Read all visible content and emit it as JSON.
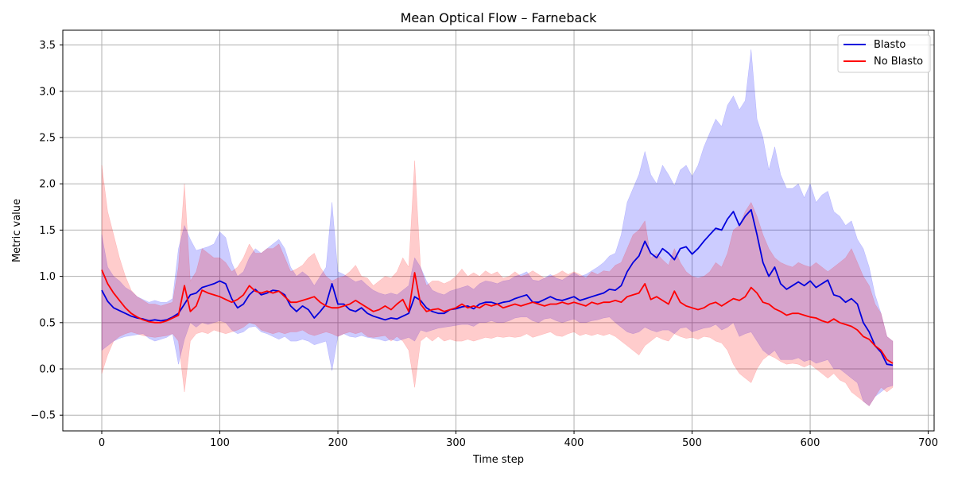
{
  "chart_data": {
    "type": "line",
    "title": "Mean Optical Flow – Farneback",
    "xlabel": "Time step",
    "ylabel": "Metric value",
    "xlim": [
      -33,
      705
    ],
    "ylim": [
      -0.67,
      3.66
    ],
    "xticks": [
      0,
      100,
      200,
      300,
      400,
      500,
      600,
      700
    ],
    "yticks": [
      -0.5,
      0.0,
      0.5,
      1.0,
      1.5,
      2.0,
      2.5,
      3.0,
      3.5
    ],
    "grid": true,
    "legend_position": "top-right",
    "series": [
      {
        "name": "Blasto",
        "color": "#0000dd",
        "band_color": "#0000ff",
        "x": [
          0,
          5,
          10,
          15,
          20,
          25,
          30,
          35,
          40,
          45,
          50,
          55,
          60,
          65,
          70,
          75,
          80,
          85,
          90,
          95,
          100,
          105,
          110,
          115,
          120,
          125,
          130,
          135,
          140,
          145,
          150,
          155,
          160,
          165,
          170,
          175,
          180,
          185,
          190,
          195,
          200,
          205,
          210,
          215,
          220,
          225,
          230,
          235,
          240,
          245,
          250,
          255,
          260,
          265,
          270,
          275,
          280,
          285,
          290,
          295,
          300,
          305,
          310,
          315,
          320,
          325,
          330,
          335,
          340,
          345,
          350,
          355,
          360,
          365,
          370,
          375,
          380,
          385,
          390,
          395,
          400,
          405,
          410,
          415,
          420,
          425,
          430,
          435,
          440,
          445,
          450,
          455,
          460,
          465,
          470,
          475,
          480,
          485,
          490,
          495,
          500,
          505,
          510,
          515,
          520,
          525,
          530,
          535,
          540,
          545,
          550,
          555,
          560,
          565,
          570,
          575,
          580,
          585,
          590,
          595,
          600,
          605,
          610,
          615,
          620,
          625,
          630,
          635,
          640,
          645,
          650,
          655,
          660,
          665,
          670
        ],
        "mean": [
          0.85,
          0.73,
          0.66,
          0.63,
          0.6,
          0.57,
          0.55,
          0.54,
          0.52,
          0.53,
          0.52,
          0.53,
          0.56,
          0.6,
          0.7,
          0.8,
          0.82,
          0.88,
          0.9,
          0.92,
          0.95,
          0.92,
          0.76,
          0.66,
          0.7,
          0.8,
          0.86,
          0.8,
          0.82,
          0.85,
          0.84,
          0.8,
          0.68,
          0.62,
          0.68,
          0.64,
          0.55,
          0.62,
          0.7,
          0.92,
          0.7,
          0.7,
          0.64,
          0.62,
          0.66,
          0.6,
          0.57,
          0.55,
          0.53,
          0.55,
          0.54,
          0.57,
          0.6,
          0.78,
          0.74,
          0.66,
          0.62,
          0.6,
          0.6,
          0.64,
          0.65,
          0.67,
          0.68,
          0.65,
          0.7,
          0.72,
          0.72,
          0.7,
          0.72,
          0.73,
          0.76,
          0.78,
          0.8,
          0.72,
          0.72,
          0.75,
          0.78,
          0.75,
          0.74,
          0.76,
          0.78,
          0.74,
          0.76,
          0.78,
          0.8,
          0.82,
          0.86,
          0.85,
          0.9,
          1.05,
          1.15,
          1.22,
          1.38,
          1.25,
          1.2,
          1.3,
          1.25,
          1.18,
          1.3,
          1.32,
          1.24,
          1.3,
          1.38,
          1.45,
          1.52,
          1.5,
          1.62,
          1.7,
          1.55,
          1.65,
          1.72,
          1.45,
          1.15,
          1.0,
          1.1,
          0.92,
          0.86,
          0.9,
          0.94,
          0.9,
          0.95,
          0.88,
          0.92,
          0.96,
          0.8,
          0.78,
          0.72,
          0.76,
          0.7,
          0.5,
          0.4,
          0.25,
          0.18,
          0.05,
          0.04
        ],
        "lower": [
          0.2,
          0.25,
          0.3,
          0.33,
          0.35,
          0.36,
          0.37,
          0.38,
          0.33,
          0.3,
          0.32,
          0.34,
          0.38,
          0.05,
          0.32,
          0.5,
          0.45,
          0.5,
          0.48,
          0.5,
          0.52,
          0.5,
          0.42,
          0.38,
          0.4,
          0.45,
          0.46,
          0.4,
          0.38,
          0.35,
          0.32,
          0.35,
          0.3,
          0.3,
          0.32,
          0.3,
          0.26,
          0.28,
          0.3,
          -0.02,
          0.35,
          0.38,
          0.35,
          0.34,
          0.36,
          0.34,
          0.33,
          0.32,
          0.3,
          0.32,
          0.3,
          0.32,
          0.34,
          0.3,
          0.42,
          0.4,
          0.42,
          0.44,
          0.45,
          0.46,
          0.47,
          0.48,
          0.48,
          0.46,
          0.5,
          0.5,
          0.52,
          0.5,
          0.5,
          0.52,
          0.55,
          0.56,
          0.56,
          0.52,
          0.5,
          0.54,
          0.55,
          0.52,
          0.5,
          0.52,
          0.54,
          0.5,
          0.5,
          0.52,
          0.53,
          0.55,
          0.56,
          0.5,
          0.45,
          0.4,
          0.38,
          0.4,
          0.45,
          0.42,
          0.4,
          0.42,
          0.42,
          0.38,
          0.44,
          0.45,
          0.4,
          0.42,
          0.44,
          0.45,
          0.48,
          0.42,
          0.45,
          0.5,
          0.35,
          0.38,
          0.4,
          0.3,
          0.2,
          0.15,
          0.2,
          0.1,
          0.1,
          0.1,
          0.12,
          0.08,
          0.1,
          0.06,
          0.08,
          0.1,
          0.0,
          0.0,
          -0.05,
          -0.1,
          -0.15,
          -0.35,
          -0.4,
          -0.3,
          -0.25,
          -0.2,
          -0.18
        ],
        "upper": [
          1.45,
          1.1,
          1.0,
          0.95,
          0.88,
          0.84,
          0.78,
          0.75,
          0.72,
          0.74,
          0.72,
          0.72,
          0.76,
          1.3,
          1.55,
          1.4,
          1.28,
          1.3,
          1.32,
          1.35,
          1.48,
          1.42,
          1.15,
          1.0,
          1.05,
          1.2,
          1.3,
          1.25,
          1.3,
          1.35,
          1.4,
          1.3,
          1.1,
          1.0,
          1.05,
          1.0,
          0.9,
          1.0,
          1.1,
          1.8,
          1.05,
          1.02,
          0.98,
          0.94,
          0.96,
          0.9,
          0.85,
          0.82,
          0.8,
          0.82,
          0.8,
          0.85,
          0.9,
          1.2,
          1.1,
          0.95,
          0.85,
          0.82,
          0.8,
          0.84,
          0.86,
          0.88,
          0.9,
          0.86,
          0.92,
          0.95,
          0.94,
          0.92,
          0.95,
          0.96,
          1.0,
          1.02,
          1.05,
          0.96,
          0.95,
          0.98,
          1.02,
          0.98,
          0.96,
          1.0,
          1.04,
          1.0,
          1.02,
          1.06,
          1.1,
          1.15,
          1.22,
          1.25,
          1.45,
          1.8,
          1.95,
          2.1,
          2.35,
          2.1,
          2.0,
          2.2,
          2.1,
          1.98,
          2.15,
          2.2,
          2.08,
          2.2,
          2.4,
          2.55,
          2.7,
          2.62,
          2.85,
          2.95,
          2.8,
          2.9,
          3.45,
          2.7,
          2.5,
          2.15,
          2.4,
          2.1,
          1.95,
          1.95,
          2.0,
          1.85,
          2.0,
          1.8,
          1.88,
          1.92,
          1.7,
          1.65,
          1.55,
          1.6,
          1.4,
          1.3,
          1.1,
          0.8,
          0.6,
          0.35,
          0.3
        ]
      },
      {
        "name": "No Blasto",
        "color": "#ff0000",
        "band_color": "#ff0000",
        "x": [
          0,
          5,
          10,
          15,
          20,
          25,
          30,
          35,
          40,
          45,
          50,
          55,
          60,
          65,
          70,
          75,
          80,
          85,
          90,
          95,
          100,
          105,
          110,
          115,
          120,
          125,
          130,
          135,
          140,
          145,
          150,
          155,
          160,
          165,
          170,
          175,
          180,
          185,
          190,
          195,
          200,
          205,
          210,
          215,
          220,
          225,
          230,
          235,
          240,
          245,
          250,
          255,
          260,
          265,
          270,
          275,
          280,
          285,
          290,
          295,
          300,
          305,
          310,
          315,
          320,
          325,
          330,
          335,
          340,
          345,
          350,
          355,
          360,
          365,
          370,
          375,
          380,
          385,
          390,
          395,
          400,
          405,
          410,
          415,
          420,
          425,
          430,
          435,
          440,
          445,
          450,
          455,
          460,
          465,
          470,
          475,
          480,
          485,
          490,
          495,
          500,
          505,
          510,
          515,
          520,
          525,
          530,
          535,
          540,
          545,
          550,
          555,
          560,
          565,
          570,
          575,
          580,
          585,
          590,
          595,
          600,
          605,
          610,
          615,
          620,
          625,
          630,
          635,
          640,
          645,
          650,
          655,
          660,
          665,
          670
        ],
        "mean": [
          1.07,
          0.92,
          0.82,
          0.74,
          0.66,
          0.6,
          0.56,
          0.53,
          0.51,
          0.5,
          0.5,
          0.52,
          0.55,
          0.58,
          0.9,
          0.62,
          0.68,
          0.85,
          0.82,
          0.8,
          0.78,
          0.75,
          0.72,
          0.75,
          0.8,
          0.9,
          0.84,
          0.82,
          0.84,
          0.82,
          0.84,
          0.78,
          0.72,
          0.72,
          0.74,
          0.76,
          0.78,
          0.72,
          0.68,
          0.66,
          0.66,
          0.68,
          0.7,
          0.74,
          0.7,
          0.66,
          0.62,
          0.64,
          0.68,
          0.64,
          0.7,
          0.75,
          0.62,
          1.04,
          0.7,
          0.62,
          0.64,
          0.65,
          0.62,
          0.64,
          0.66,
          0.7,
          0.66,
          0.68,
          0.66,
          0.7,
          0.68,
          0.7,
          0.66,
          0.68,
          0.7,
          0.68,
          0.7,
          0.72,
          0.7,
          0.68,
          0.7,
          0.7,
          0.72,
          0.7,
          0.72,
          0.7,
          0.68,
          0.72,
          0.7,
          0.72,
          0.72,
          0.74,
          0.72,
          0.78,
          0.8,
          0.82,
          0.92,
          0.75,
          0.78,
          0.74,
          0.7,
          0.84,
          0.72,
          0.68,
          0.66,
          0.64,
          0.66,
          0.7,
          0.72,
          0.68,
          0.72,
          0.76,
          0.74,
          0.78,
          0.88,
          0.82,
          0.72,
          0.7,
          0.65,
          0.62,
          0.58,
          0.6,
          0.6,
          0.58,
          0.56,
          0.55,
          0.52,
          0.5,
          0.54,
          0.5,
          0.48,
          0.46,
          0.42,
          0.35,
          0.32,
          0.25,
          0.2,
          0.1,
          0.06
        ],
        "lower": [
          -0.05,
          0.15,
          0.3,
          0.35,
          0.38,
          0.4,
          0.38,
          0.36,
          0.35,
          0.34,
          0.35,
          0.36,
          0.38,
          0.3,
          -0.25,
          0.3,
          0.38,
          0.4,
          0.38,
          0.42,
          0.4,
          0.38,
          0.4,
          0.42,
          0.45,
          0.5,
          0.48,
          0.42,
          0.4,
          0.38,
          0.4,
          0.38,
          0.4,
          0.4,
          0.42,
          0.38,
          0.36,
          0.38,
          0.4,
          0.38,
          0.35,
          0.38,
          0.4,
          0.38,
          0.4,
          0.35,
          0.34,
          0.35,
          0.36,
          0.3,
          0.35,
          0.3,
          0.2,
          -0.2,
          0.3,
          0.35,
          0.3,
          0.35,
          0.3,
          0.32,
          0.3,
          0.3,
          0.32,
          0.3,
          0.32,
          0.34,
          0.33,
          0.35,
          0.34,
          0.35,
          0.34,
          0.35,
          0.38,
          0.34,
          0.36,
          0.38,
          0.4,
          0.36,
          0.35,
          0.38,
          0.4,
          0.36,
          0.38,
          0.36,
          0.38,
          0.36,
          0.38,
          0.35,
          0.3,
          0.25,
          0.2,
          0.15,
          0.25,
          0.3,
          0.35,
          0.32,
          0.3,
          0.38,
          0.35,
          0.33,
          0.34,
          0.32,
          0.35,
          0.34,
          0.3,
          0.28,
          0.2,
          0.05,
          -0.05,
          -0.1,
          -0.15,
          0.0,
          0.1,
          0.15,
          0.12,
          0.08,
          0.05,
          0.06,
          0.05,
          0.02,
          0.05,
          0.0,
          -0.05,
          -0.1,
          -0.05,
          -0.12,
          -0.15,
          -0.25,
          -0.3,
          -0.35,
          -0.4,
          -0.3,
          -0.2,
          -0.25,
          -0.2
        ],
        "upper": [
          2.2,
          1.7,
          1.45,
          1.2,
          1.0,
          0.85,
          0.78,
          0.74,
          0.7,
          0.7,
          0.68,
          0.7,
          0.72,
          1.1,
          2.0,
          0.95,
          1.05,
          1.3,
          1.25,
          1.2,
          1.2,
          1.15,
          1.05,
          1.1,
          1.2,
          1.35,
          1.25,
          1.25,
          1.3,
          1.3,
          1.35,
          1.2,
          1.05,
          1.08,
          1.12,
          1.2,
          1.25,
          1.1,
          1.0,
          0.95,
          0.98,
          1.0,
          1.05,
          1.12,
          1.0,
          0.98,
          0.9,
          0.95,
          1.0,
          0.98,
          1.05,
          1.2,
          1.1,
          2.25,
          1.1,
          0.9,
          0.95,
          0.95,
          0.92,
          0.95,
          1.0,
          1.08,
          1.0,
          1.04,
          1.0,
          1.06,
          1.02,
          1.05,
          0.98,
          1.0,
          1.05,
          1.0,
          1.02,
          1.06,
          1.02,
          0.98,
          1.0,
          1.02,
          1.06,
          1.02,
          1.05,
          1.02,
          0.98,
          1.05,
          1.02,
          1.06,
          1.05,
          1.12,
          1.15,
          1.3,
          1.45,
          1.5,
          1.6,
          1.2,
          1.25,
          1.18,
          1.12,
          1.3,
          1.15,
          1.05,
          1.0,
          0.98,
          1.0,
          1.05,
          1.15,
          1.1,
          1.25,
          1.5,
          1.55,
          1.7,
          1.8,
          1.65,
          1.45,
          1.3,
          1.2,
          1.15,
          1.12,
          1.1,
          1.15,
          1.12,
          1.1,
          1.15,
          1.1,
          1.05,
          1.1,
          1.15,
          1.2,
          1.3,
          1.15,
          1.0,
          0.9,
          0.7,
          0.6,
          0.35,
          0.3
        ]
      }
    ]
  }
}
